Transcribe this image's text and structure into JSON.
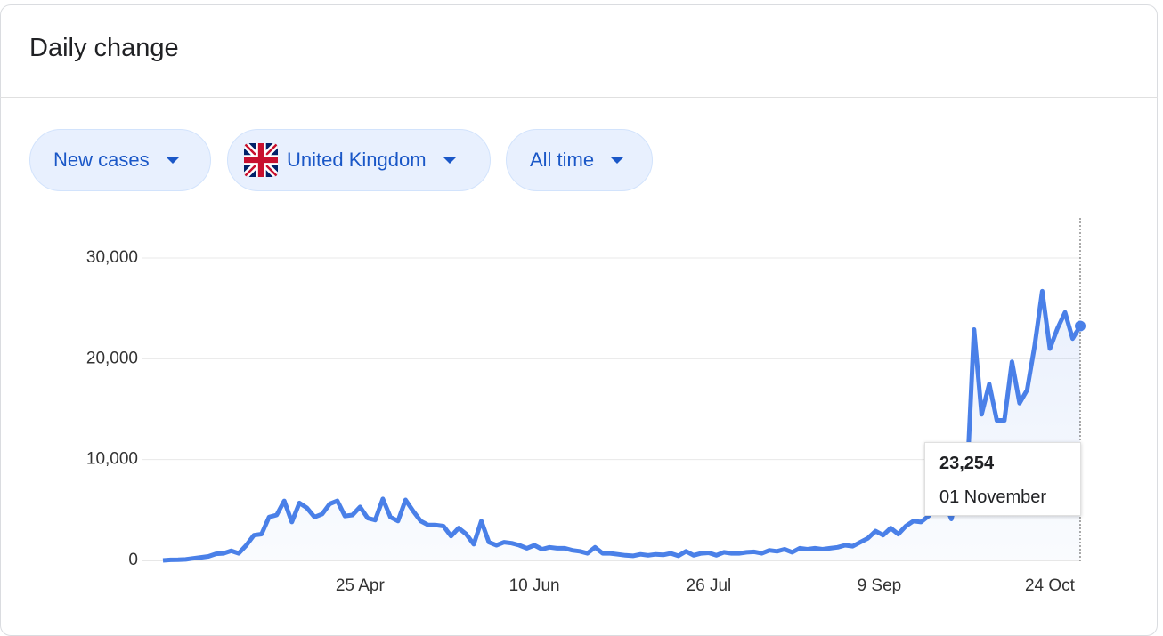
{
  "header": {
    "title": "Daily change"
  },
  "filters": [
    {
      "label": "New cases"
    },
    {
      "label": "United Kingdom"
    },
    {
      "label": "All time"
    }
  ],
  "chart_data": {
    "type": "line",
    "color": "#4a80e8",
    "x": [
      "4 Mar",
      "6 Mar",
      "8 Mar",
      "10 Mar",
      "12 Mar",
      "14 Mar",
      "16 Mar",
      "18 Mar",
      "20 Mar",
      "22 Mar",
      "24 Mar",
      "26 Mar",
      "28 Mar",
      "30 Mar",
      "1 Apr",
      "3 Apr",
      "5 Apr",
      "7 Apr",
      "9 Apr",
      "11 Apr",
      "13 Apr",
      "15 Apr",
      "17 Apr",
      "19 Apr",
      "21 Apr",
      "23 Apr",
      "25 Apr",
      "27 Apr",
      "29 Apr",
      "1 May",
      "3 May",
      "5 May",
      "7 May",
      "9 May",
      "11 May",
      "13 May",
      "15 May",
      "17 May",
      "19 May",
      "21 May",
      "23 May",
      "25 May",
      "27 May",
      "29 May",
      "31 May",
      "2 Jun",
      "4 Jun",
      "6 Jun",
      "8 Jun",
      "10 Jun",
      "12 Jun",
      "14 Jun",
      "16 Jun",
      "18 Jun",
      "20 Jun",
      "22 Jun",
      "24 Jun",
      "26 Jun",
      "28 Jun",
      "30 Jun",
      "2 Jul",
      "4 Jul",
      "6 Jul",
      "8 Jul",
      "10 Jul",
      "12 Jul",
      "14 Jul",
      "16 Jul",
      "18 Jul",
      "20 Jul",
      "22 Jul",
      "24 Jul",
      "26 Jul",
      "28 Jul",
      "30 Jul",
      "1 Aug",
      "3 Aug",
      "5 Aug",
      "7 Aug",
      "9 Aug",
      "11 Aug",
      "13 Aug",
      "15 Aug",
      "17 Aug",
      "19 Aug",
      "21 Aug",
      "23 Aug",
      "25 Aug",
      "27 Aug",
      "29 Aug",
      "31 Aug",
      "2 Sep",
      "4 Sep",
      "6 Sep",
      "8 Sep",
      "10 Sep",
      "12 Sep",
      "14 Sep",
      "16 Sep",
      "18 Sep",
      "20 Sep",
      "22 Sep",
      "24 Sep",
      "26 Sep",
      "28 Sep",
      "30 Sep",
      "2 Oct",
      "4 Oct",
      "6 Oct",
      "8 Oct",
      "10 Oct",
      "12 Oct",
      "14 Oct",
      "16 Oct",
      "18 Oct",
      "20 Oct",
      "22 Oct",
      "24 Oct",
      "26 Oct",
      "28 Oct",
      "30 Oct",
      "1 Nov"
    ],
    "values": [
      0,
      50,
      60,
      100,
      200,
      300,
      400,
      650,
      700,
      950,
      700,
      1500,
      2500,
      2600,
      4300,
      4500,
      5900,
      3800,
      5700,
      5200,
      4300,
      4600,
      5600,
      5900,
      4400,
      4500,
      5300,
      4200,
      4000,
      6100,
      4300,
      3900,
      6000,
      4900,
      3900,
      3500,
      3500,
      3400,
      2400,
      3200,
      2600,
      1600,
      3900,
      1800,
      1500,
      1800,
      1700,
      1500,
      1200,
      1500,
      1100,
      1300,
      1200,
      1200,
      1000,
      900,
      700,
      1300,
      700,
      700,
      600,
      500,
      450,
      600,
      500,
      600,
      550,
      700,
      450,
      900,
      500,
      700,
      750,
      500,
      800,
      700,
      700,
      800,
      850,
      700,
      1000,
      900,
      1100,
      800,
      1200,
      1100,
      1200,
      1100,
      1200,
      1300,
      1500,
      1400,
      1800,
      2200,
      2900,
      2500,
      3200,
      2600,
      3400,
      3900,
      3800,
      4400,
      5500,
      6000,
      4100,
      7100,
      6900,
      22900,
      14500,
      17500,
      13900,
      13900,
      19700,
      15600,
      16900,
      21300,
      26700,
      21000,
      23000,
      24600,
      22000,
      23254
    ],
    "xlim": [
      "4 Mar",
      "1 Nov"
    ],
    "xticks": [
      "25 Apr",
      "10 Jun",
      "26 Jul",
      "9 Sep",
      "24 Oct"
    ],
    "ylim": [
      0,
      30000
    ],
    "yticks": [
      0,
      {
        "value": 10000,
        "label": "10,000"
      },
      {
        "value": 20000,
        "label": "20,000"
      },
      {
        "value": 30000,
        "label": "30,000"
      }
    ],
    "grid": true,
    "tooltip": {
      "value": 23254,
      "label": "23,254",
      "date": "01 November"
    }
  }
}
